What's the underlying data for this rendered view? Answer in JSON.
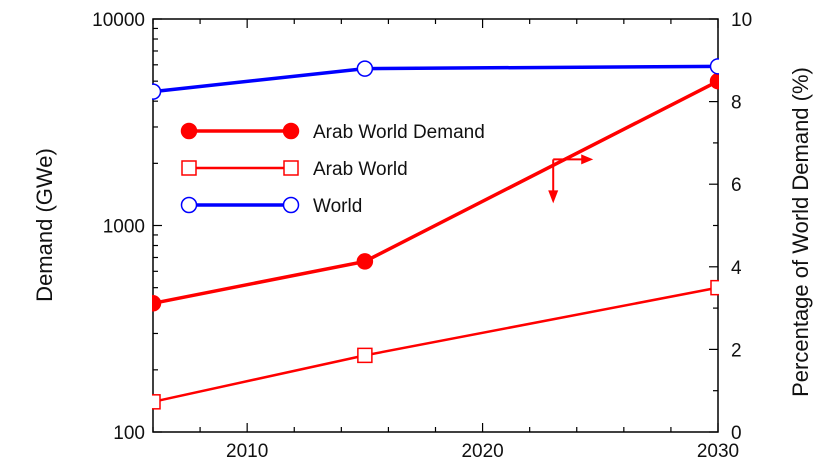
{
  "chart_data": {
    "type": "line",
    "xlim": [
      2006,
      2030
    ],
    "x_ticks": [
      2010,
      2020,
      2030
    ],
    "x_tick_labels": [
      "2010",
      "2020",
      "2030"
    ],
    "ylabel": "Demand (GWe)",
    "ylim": [
      100,
      10000
    ],
    "y_scale": "log",
    "y_ticks": [
      100,
      1000,
      10000
    ],
    "y_tick_labels": [
      "100",
      "1000",
      "10000"
    ],
    "y2label": "Percentage of World Demand (%)",
    "y2lim": [
      0,
      10
    ],
    "y2_ticks": [
      0,
      2,
      4,
      6,
      8,
      10
    ],
    "y2_tick_labels": [
      "0",
      "2",
      "4",
      "6",
      "8",
      "10"
    ],
    "grid": false,
    "legend_position": "upper-left",
    "series": [
      {
        "name": "Arab World Demand",
        "axis": "left",
        "color": "#ff0000",
        "marker": "filled-circle",
        "x": [
          2006,
          2015,
          2030
        ],
        "y": [
          420,
          670,
          5000
        ]
      },
      {
        "name": "Arab World",
        "axis": "left",
        "color": "#ff0000",
        "marker": "open-square",
        "x": [
          2006,
          2015,
          2030
        ],
        "y": [
          140,
          235,
          500
        ]
      },
      {
        "name": "World",
        "axis": "left",
        "color": "#0000ff",
        "marker": "open-circle",
        "x": [
          2006,
          2015,
          2030
        ],
        "y": [
          4450,
          5750,
          5900
        ]
      }
    ],
    "annotations": [
      {
        "type": "arrow",
        "direction": "right",
        "meaning": "refers to right axis"
      },
      {
        "type": "arrow",
        "direction": "down",
        "meaning": "refers to left axis"
      }
    ]
  }
}
